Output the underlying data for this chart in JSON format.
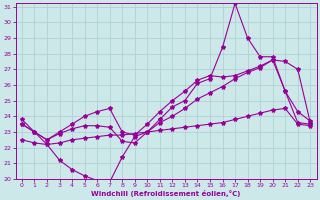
{
  "xlabel": "Windchill (Refroidissement éolien,°C)",
  "x": [
    0,
    1,
    2,
    3,
    4,
    5,
    6,
    7,
    8,
    9,
    10,
    11,
    12,
    13,
    14,
    15,
    16,
    17,
    18,
    19,
    20,
    21,
    22,
    23
  ],
  "line1": [
    23.8,
    23.0,
    22.2,
    21.2,
    20.6,
    20.2,
    19.9,
    19.8,
    21.4,
    22.7,
    23.0,
    23.8,
    24.6,
    25.0,
    26.1,
    26.4,
    28.4,
    31.2,
    29.0,
    27.8,
    27.8,
    25.6,
    24.3,
    23.7
  ],
  "line2": [
    23.5,
    23.0,
    22.5,
    23.0,
    23.5,
    24.0,
    24.3,
    24.5,
    23.0,
    22.8,
    23.5,
    24.3,
    25.0,
    25.6,
    26.3,
    26.6,
    26.5,
    26.6,
    26.9,
    27.2,
    27.6,
    27.5,
    27.0,
    23.6
  ],
  "line3": [
    23.5,
    23.0,
    22.5,
    22.9,
    23.2,
    23.4,
    23.4,
    23.3,
    22.4,
    22.3,
    23.0,
    23.6,
    24.0,
    24.5,
    25.1,
    25.5,
    25.9,
    26.4,
    26.8,
    27.1,
    27.6,
    25.6,
    23.6,
    23.5
  ],
  "line4": [
    22.5,
    22.3,
    22.2,
    22.3,
    22.5,
    22.6,
    22.7,
    22.8,
    22.8,
    22.9,
    23.0,
    23.1,
    23.2,
    23.3,
    23.4,
    23.5,
    23.6,
    23.8,
    24.0,
    24.2,
    24.4,
    24.5,
    23.5,
    23.4
  ],
  "line_color": "#990099",
  "bg_color": "#cce8e8",
  "grid_color": "#aacece",
  "ylim": [
    20,
    31
  ],
  "xlim": [
    -0.5,
    23.5
  ],
  "yticks": [
    20,
    21,
    22,
    23,
    24,
    25,
    26,
    27,
    28,
    29,
    30,
    31
  ]
}
